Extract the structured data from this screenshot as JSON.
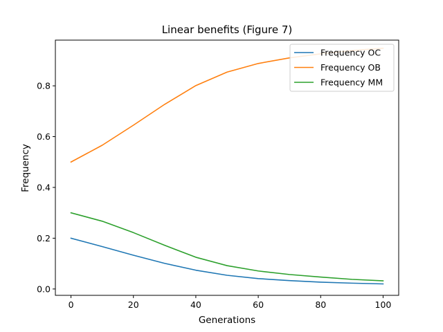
{
  "chart_data": {
    "type": "line",
    "title": "Linear benefits (Figure 7)",
    "xlabel": "Generations",
    "ylabel": "Frequency",
    "xlim": [
      -5,
      105
    ],
    "ylim": [
      -0.025,
      0.98
    ],
    "xticks": [
      0,
      20,
      40,
      60,
      80,
      100
    ],
    "yticks": [
      0.0,
      0.2,
      0.4,
      0.6,
      0.8
    ],
    "ytick_labels": [
      "0.0",
      "0.2",
      "0.4",
      "0.6",
      "0.8"
    ],
    "grid": false,
    "legend_position": "top-right",
    "x": [
      0,
      10,
      20,
      30,
      40,
      50,
      60,
      70,
      80,
      90,
      100
    ],
    "series": [
      {
        "name": "Frequency OC",
        "color": "#1f77b4",
        "values": [
          0.2,
          0.167,
          0.133,
          0.101,
          0.074,
          0.054,
          0.041,
          0.033,
          0.027,
          0.023,
          0.02
        ]
      },
      {
        "name": "Frequency OB",
        "color": "#ff7f0e",
        "values": [
          0.5,
          0.566,
          0.645,
          0.727,
          0.801,
          0.854,
          0.888,
          0.91,
          0.926,
          0.939,
          0.948
        ]
      },
      {
        "name": "Frequency MM",
        "color": "#2ca02c",
        "values": [
          0.3,
          0.267,
          0.222,
          0.172,
          0.125,
          0.092,
          0.071,
          0.057,
          0.047,
          0.038,
          0.032
        ]
      }
    ]
  }
}
